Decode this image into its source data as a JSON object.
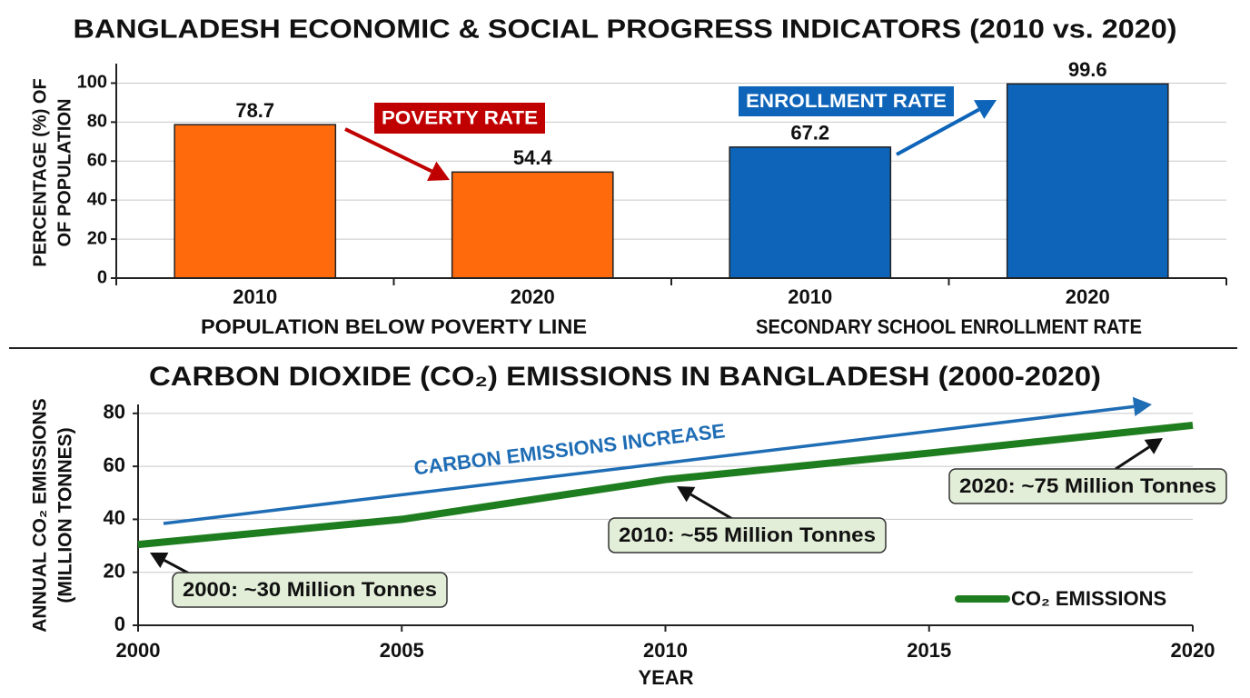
{
  "title": "BANGLADESH ECONOMIC & SOCIAL PROGRESS INDICATORS (2010 vs. 2020)",
  "chart_data": [
    {
      "type": "bar",
      "ylabel": [
        "PERCENTAGE (%) OF",
        "OF POPULATION"
      ],
      "categories": [
        "2010",
        "2020",
        "2010",
        "2020"
      ],
      "group_labels": [
        "POPULATION BELOW POVERTY LINE",
        "SECONDARY SCHOOL ENROLLMENT RATE"
      ],
      "values": [
        78.7,
        54.4,
        67.2,
        99.6
      ],
      "colors": [
        "#ff6a0d",
        "#ff6a0d",
        "#0d64b8",
        "#0d64b8"
      ],
      "annotations": [
        {
          "text": "POVERTY RATE",
          "color": "#c00000"
        },
        {
          "text": "ENROLLMENT RATE",
          "color": "#0d64b8"
        }
      ],
      "ylim": [
        0,
        110
      ],
      "yticks": [
        0,
        20,
        40,
        60,
        80,
        100
      ],
      "grid": true
    },
    {
      "type": "line",
      "title": "CARBON DIOXIDE (CO₂) EMISSIONS IN BANGLADESH (2000-2020)",
      "ylabel": [
        "ANNUAL CO₂ EMISSIONS",
        "(MILLION TONNES)"
      ],
      "xlabel": "YEAR",
      "x": [
        2000,
        2005,
        2010,
        2015,
        2020
      ],
      "series": [
        {
          "name": "CO₂ EMISSIONS",
          "color": "#1e7d1e",
          "values": [
            30.5,
            40,
            55,
            65,
            75.5
          ]
        }
      ],
      "annotations": [
        {
          "text": "CARBON EMISSIONS INCREASE",
          "color": "#1f6db5"
        },
        {
          "text": "2000: ~30 Million Tonnes"
        },
        {
          "text": "2010: ~55 Million Tonnes"
        },
        {
          "text": "2020: ~75 Million Tonnes"
        }
      ],
      "xlim": [
        2000,
        2020
      ],
      "xticks": [
        2000,
        2005,
        2010,
        2015,
        2020
      ],
      "ylim": [
        0,
        82
      ],
      "yticks": [
        0,
        20,
        40,
        60,
        80
      ],
      "grid": true,
      "legend": "lower right"
    }
  ]
}
